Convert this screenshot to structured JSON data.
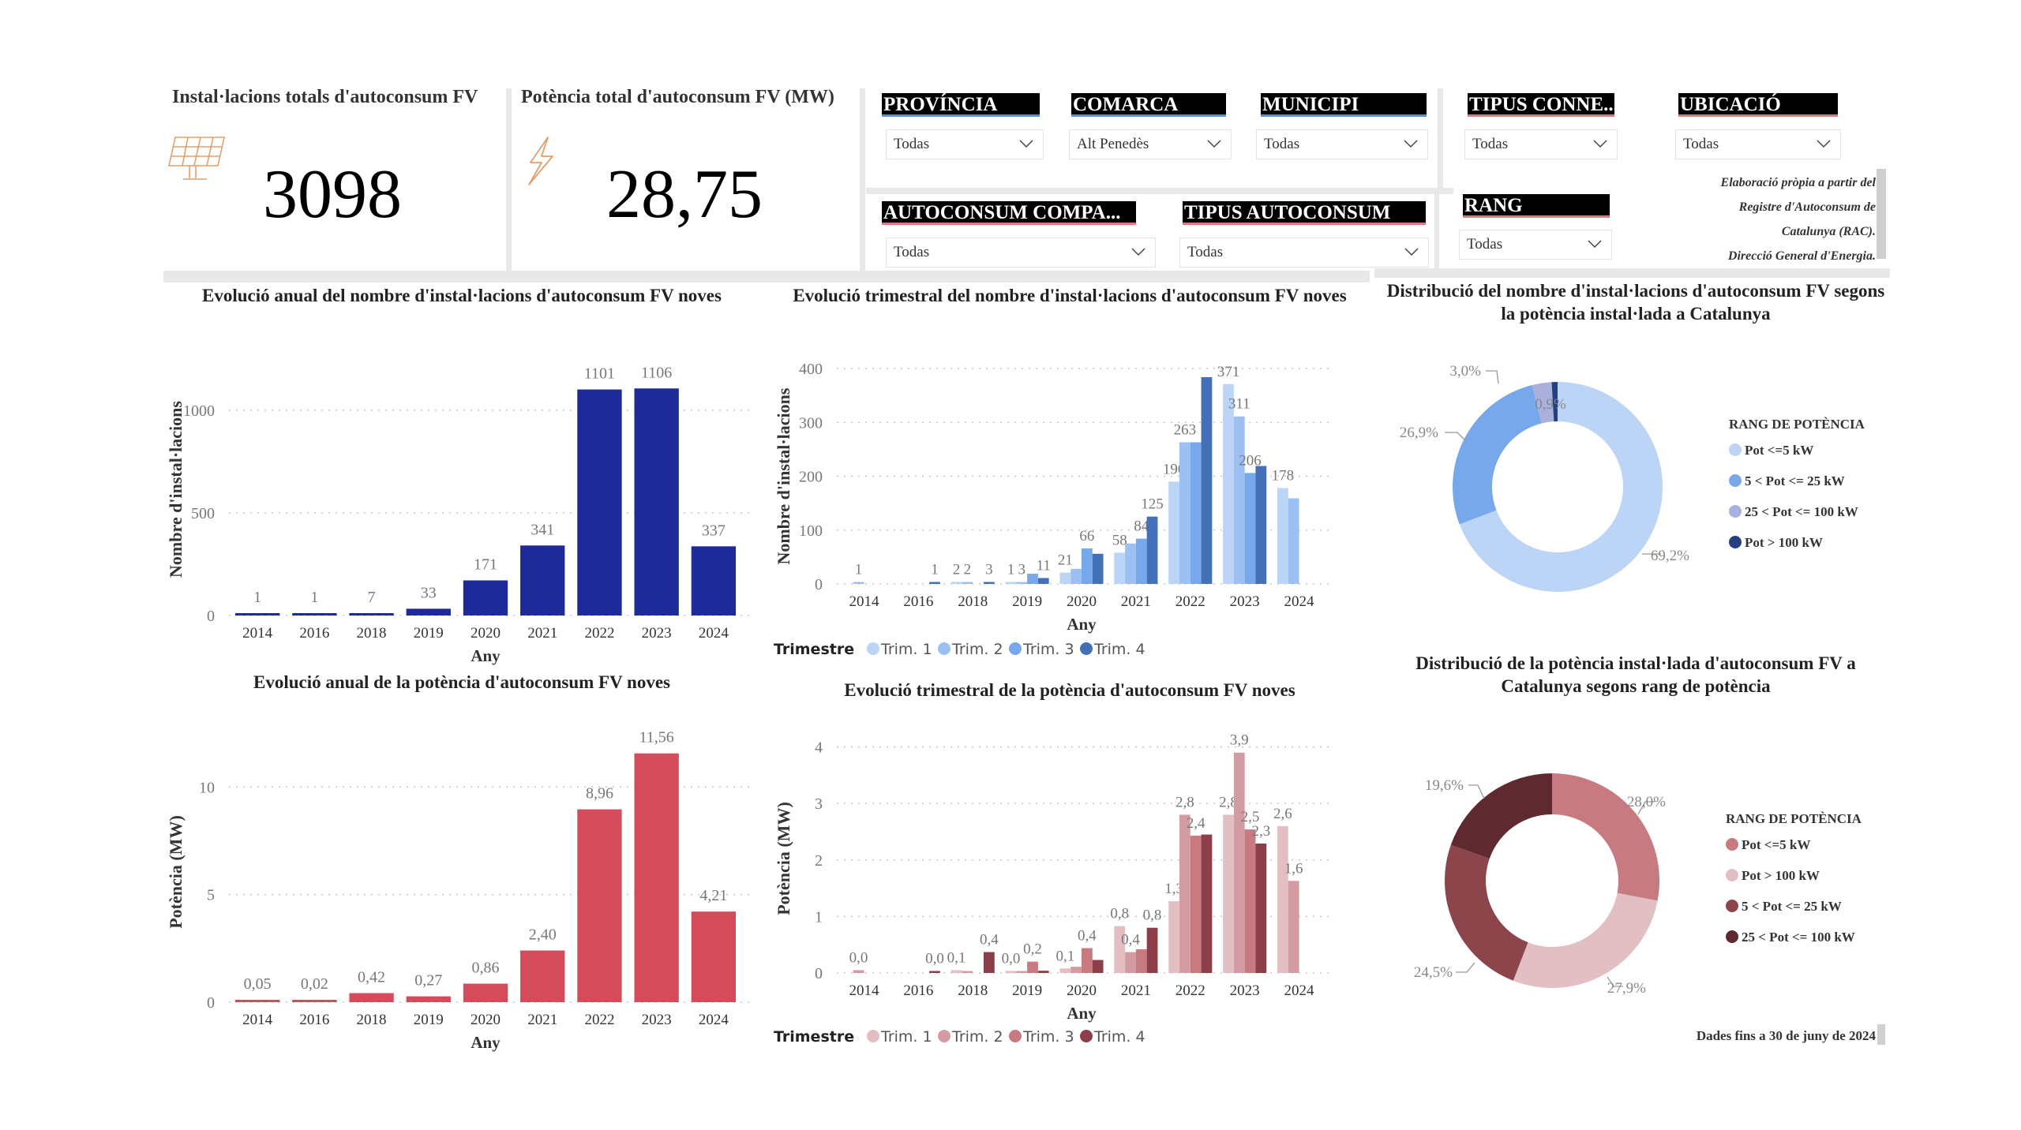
{
  "kpis": {
    "installations": {
      "title": "Instal·lacions totals d'autoconsum FV",
      "value": "3098",
      "icon": "solar-panel-icon"
    },
    "power": {
      "title": "Potència total d'autoconsum FV (MW)",
      "value": "28,75",
      "icon": "lightning-icon"
    }
  },
  "filters": [
    {
      "label": "PROVÍNCIA",
      "value": "Todas"
    },
    {
      "label": "COMARCA",
      "value": "Alt Penedès"
    },
    {
      "label": "MUNICIPI",
      "value": "Todas"
    },
    {
      "label": "TIPUS CONNE...",
      "value": "Todas"
    },
    {
      "label": "UBICACIÓ",
      "value": "Todas"
    },
    {
      "label": "AUTOCONSUM COMPA...",
      "value": "Todas"
    },
    {
      "label": "TIPUS AUTOCONSUM",
      "value": "Todas"
    },
    {
      "label": "RANG",
      "value": "Todas"
    }
  ],
  "source_note": [
    "Elaboració pròpia a partir del",
    "Registre d'Autoconsum de",
    "Catalunya (RAC).",
    "Direcció General d'Energia."
  ],
  "footer_note": "Dades fins a 30 de juny de 2024",
  "colors": {
    "annual_count_bar": "#1f2a99",
    "annual_power_bar": "#d44c5c",
    "quarter_blue": [
      "#bcd4f5",
      "#9dc0f2",
      "#78a8ec",
      "#4470b8"
    ],
    "quarter_red": [
      "#e3bfc3",
      "#d39ca2",
      "#c87a80",
      "#8c3f48"
    ],
    "slicer_accent_blue": "#5b8fd6",
    "slicer_accent_pink": "#d97a86",
    "kpi_icon": "#e0a06e"
  },
  "chart_data": [
    {
      "id": "annual_count",
      "type": "bar",
      "title": "Evolució anual del nombre d'instal·lacions d'autoconsum FV noves",
      "xlabel": "Any",
      "ylabel": "Nombre d'instal·lacions",
      "categories": [
        "2014",
        "2016",
        "2018",
        "2019",
        "2020",
        "2021",
        "2022",
        "2023",
        "2024"
      ],
      "values": [
        1,
        1,
        7,
        33,
        171,
        341,
        1101,
        1106,
        337
      ],
      "labels": [
        "1",
        "1",
        "7",
        "33",
        "171",
        "341",
        "1101",
        "1106",
        "337"
      ],
      "yticks": [
        0,
        500,
        1000
      ],
      "ylim": [
        0,
        1200
      ],
      "grid": true
    },
    {
      "id": "quarter_count",
      "type": "bar",
      "title": "Evolució trimestral del nombre d'instal·lacions d'autoconsum FV noves",
      "xlabel": "Any",
      "ylabel": "Nombre d'instal·lacions",
      "categories": [
        "2014",
        "2016",
        "2018",
        "2019",
        "2020",
        "2021",
        "2022",
        "2023",
        "2024"
      ],
      "legend_title": "Trimestre",
      "legend_position": "bottom-left",
      "series": [
        {
          "name": "Trim. 1",
          "values": [
            null,
            null,
            2,
            1,
            21,
            58,
            190,
            371,
            178
          ],
          "labels": [
            null,
            null,
            "2",
            "1",
            "21",
            "58",
            "190",
            "371",
            "178"
          ]
        },
        {
          "name": "Trim. 2",
          "values": [
            1,
            null,
            2,
            3,
            28,
            75,
            263,
            311,
            159
          ],
          "labels": [
            "1",
            null,
            "2",
            "3",
            null,
            null,
            "263",
            "311",
            null
          ]
        },
        {
          "name": "Trim. 3",
          "values": [
            null,
            null,
            null,
            19,
            66,
            84,
            263,
            206,
            null
          ],
          "labels": [
            null,
            null,
            null,
            null,
            "66",
            "84",
            null,
            "206",
            null
          ]
        },
        {
          "name": "Trim. 4",
          "values": [
            null,
            1,
            3,
            11,
            56,
            125,
            384,
            219,
            null
          ],
          "labels": [
            null,
            "1",
            "3",
            "11",
            null,
            "125",
            null,
            null,
            null
          ]
        }
      ],
      "yticks": [
        0,
        100,
        200,
        300,
        400
      ],
      "ylim": [
        0,
        400
      ],
      "grid": true
    },
    {
      "id": "annual_power",
      "type": "bar",
      "title": "Evolució anual de la potència d'autoconsum FV noves",
      "xlabel": "Any",
      "ylabel": "Potència (MW)",
      "categories": [
        "2014",
        "2016",
        "2018",
        "2019",
        "2020",
        "2021",
        "2022",
        "2023",
        "2024"
      ],
      "values": [
        0.05,
        0.02,
        0.42,
        0.27,
        0.86,
        2.4,
        8.96,
        11.56,
        4.21
      ],
      "labels": [
        "0,05",
        "0,02",
        "0,42",
        "0,27",
        "0,86",
        "2,40",
        "8,96",
        "11,56",
        "4,21"
      ],
      "yticks": [
        0,
        5,
        10
      ],
      "ylim": [
        0,
        11.56
      ],
      "grid": true
    },
    {
      "id": "quarter_power",
      "type": "bar",
      "title": "Evolució trimestral de la potència d'autoconsum FV noves",
      "xlabel": "Any",
      "ylabel": "Potència (MW)",
      "categories": [
        "2014",
        "2016",
        "2018",
        "2019",
        "2020",
        "2021",
        "2022",
        "2023",
        "2024"
      ],
      "legend_title": "Trimestre",
      "legend_position": "bottom-left",
      "series": [
        {
          "name": "Trim. 1",
          "values": [
            null,
            null,
            0.05,
            0.02,
            0.08,
            0.83,
            1.27,
            2.8,
            2.6
          ],
          "labels": [
            null,
            null,
            "0,1",
            "0,0",
            "0,1",
            "0,8",
            "1,3",
            "2,8",
            "2,6"
          ]
        },
        {
          "name": "Trim. 2",
          "values": [
            0.05,
            null,
            0.02,
            0.03,
            0.11,
            0.37,
            2.8,
            3.9,
            1.63
          ],
          "labels": [
            "0,0",
            null,
            null,
            null,
            null,
            "0,4",
            "2,8",
            "3,9",
            "1,6"
          ]
        },
        {
          "name": "Trim. 3",
          "values": [
            null,
            null,
            null,
            0.2,
            0.44,
            0.42,
            2.43,
            2.54,
            null
          ],
          "labels": [
            null,
            null,
            null,
            "0,2",
            "0,4",
            null,
            "2,4",
            "2,5",
            null
          ]
        },
        {
          "name": "Trim. 4",
          "values": [
            null,
            0.02,
            0.37,
            0.04,
            0.23,
            0.8,
            2.45,
            2.29,
            null
          ],
          "labels": [
            null,
            "0,0",
            "0,4",
            null,
            null,
            "0,8",
            null,
            "2,3",
            null
          ]
        }
      ],
      "yticks": [
        0,
        1,
        2,
        3,
        4
      ],
      "ylim": [
        0,
        4
      ],
      "grid": true
    },
    {
      "id": "donut_count",
      "type": "pie",
      "title": "Distribució del nombre d'instal·lacions d'autoconsum FV segons la potència instal·lada a Catalunya",
      "legend_title": "RANG DE POTÈNCIA",
      "legend_position": "right",
      "slices": [
        {
          "name": "Pot <=5 kW",
          "value": 69.2,
          "label": "69,2%",
          "color": "#bcd4f5"
        },
        {
          "name": "5 < Pot <= 25 kW",
          "value": 26.9,
          "label": "26,9%",
          "color": "#78a8ec"
        },
        {
          "name": "25 < Pot <= 100 kW",
          "value": 3.0,
          "label": "3,0%",
          "color": "#aab0dc"
        },
        {
          "name": "Pot > 100 kW",
          "value": 0.9,
          "label": "0,9%",
          "color": "#24407e"
        }
      ]
    },
    {
      "id": "donut_power",
      "type": "pie",
      "title": "Distribució de la potència instal·lada d'autoconsum FV a Catalunya segons rang de potència",
      "legend_title": "RANG DE POTÈNCIA",
      "legend_position": "right",
      "slices": [
        {
          "name": "Pot <=5 kW",
          "value": 28.0,
          "label": "28,0%",
          "color": "#c77b80"
        },
        {
          "name": "Pot > 100 kW",
          "value": 27.9,
          "label": "27,9%",
          "color": "#e2bfc3"
        },
        {
          "name": "5 < Pot <= 25 kW",
          "value": 24.5,
          "label": "24,5%",
          "color": "#8c454b"
        },
        {
          "name": "25 < Pot <= 100 kW",
          "value": 19.6,
          "label": "19,6%",
          "color": "#5f2a2f"
        }
      ]
    }
  ]
}
